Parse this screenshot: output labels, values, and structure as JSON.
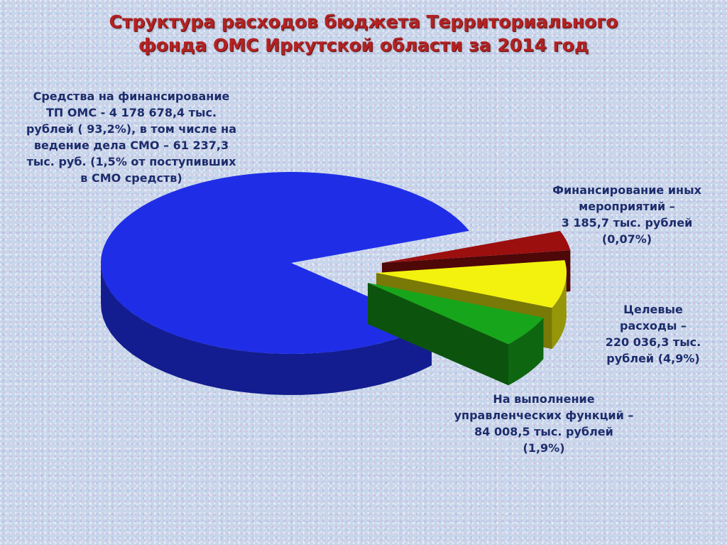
{
  "title": "Структура расходов бюджета Территориального\nфонда ОМС Иркутской области за 2014 год",
  "colors": {
    "tp_oms": "#1f2ee6",
    "upravl": "#17a51c",
    "celevye": "#f2f20e",
    "inye": "#9c0f0f"
  },
  "chart_data": {
    "type": "pie",
    "title": "Структура расходов бюджета Территориального фонда ОМС Иркутской области за 2014 год",
    "unit": "тыс. рублей",
    "slices": [
      {
        "name": "Средства на финансирование ТП ОМС",
        "value": 4178678.4,
        "percent": 93.2,
        "label": "Средства на финансирование\nТП ОМС  -   4 178 678,4 тыс.\nрублей ( 93,2%), в том числе на\nведение дела СМО – 61 237,3\nтыс. руб. (1,5% от поступивших\nв СМО средств)"
      },
      {
        "name": "На выполнение управленческих функций",
        "value": 84008.5,
        "percent": 1.9,
        "label": "На выполнение\nуправленческих функций –\n84 008,5 тыс. рублей\n(1,9%)"
      },
      {
        "name": "Целевые расходы",
        "value": 220036.3,
        "percent": 4.9,
        "label": "Целевые\nрасходы –\n220 036,3 тыс.\nрублей (4,9%)"
      },
      {
        "name": "Финансирование иных мероприятий",
        "value": 3185.7,
        "percent": 0.07,
        "label": "Финансирование иных\nмероприятий –\n3 185,7 тыс. рублей\n(0,07%)"
      }
    ],
    "legend": "none",
    "style": "3d-exploded"
  }
}
